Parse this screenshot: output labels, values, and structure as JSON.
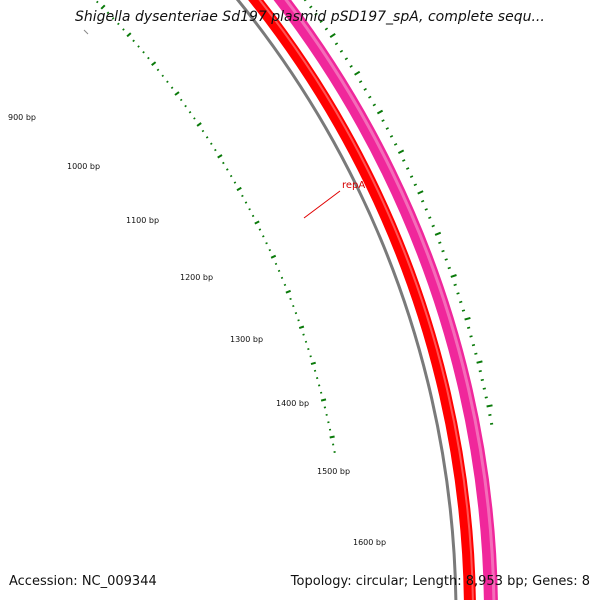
{
  "map": {
    "title": "Shigella dysenteriae Sd197 plasmid pSD197_spA, complete sequ...",
    "accession": "Accession: NC_009344",
    "summary": "Topology: circular; Length: 8,953 bp; Genes: 8",
    "scale_labels": [
      "900 bp",
      "1000 bp",
      "1100 bp",
      "1200 bp",
      "1300 bp",
      "1400 bp",
      "1500 bp",
      "1600 bp"
    ],
    "gene": {
      "label": "repA"
    },
    "colors": {
      "forward_gene": "#f0279b",
      "forward_gene_highlight": "#f57fc0",
      "reverse_gene": "#ff0000",
      "reverse_gene_highlight": "#ff6a6a",
      "backbone": "#7a7a7a",
      "tick": "#0a7a0a",
      "leader": "#e00000"
    }
  }
}
